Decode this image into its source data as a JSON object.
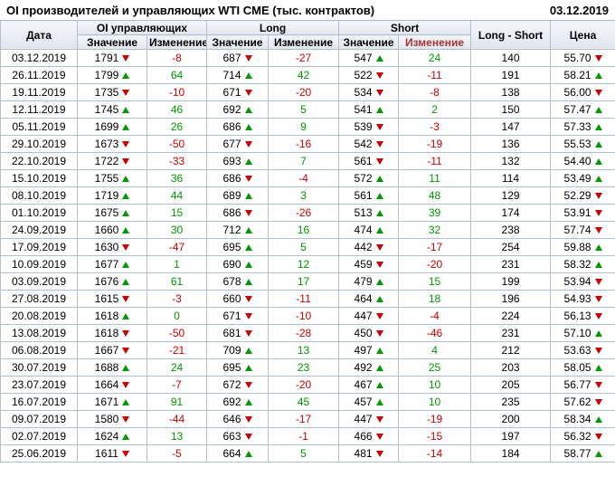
{
  "chart_data": {
    "type": "table",
    "title": "OI производителей и управляющих WTI CME (тыс. контрактов)",
    "date": "03.12.2019",
    "group_headers": {
      "date": "Дата",
      "oi": "OI управляющих",
      "long": "Long",
      "short": "Short",
      "long_short": "Long - Short",
      "price": "Цена"
    },
    "sub_headers": {
      "value": "Значение",
      "change": "Изменение"
    },
    "rows": [
      {
        "date": "03.12.2019",
        "oi": 1791,
        "oi_chg": -8,
        "oi_dir": "down",
        "long": 687,
        "long_chg": -27,
        "long_dir": "down",
        "short": 547,
        "short_chg": 24,
        "short_dir": "up",
        "long_short": 140,
        "price": "55.70",
        "price_dir": "down"
      },
      {
        "date": "26.11.2019",
        "oi": 1799,
        "oi_chg": 64,
        "oi_dir": "up",
        "long": 714,
        "long_chg": 42,
        "long_dir": "up",
        "short": 522,
        "short_chg": -11,
        "short_dir": "down",
        "long_short": 191,
        "price": "58.21",
        "price_dir": "up"
      },
      {
        "date": "19.11.2019",
        "oi": 1735,
        "oi_chg": -10,
        "oi_dir": "down",
        "long": 671,
        "long_chg": -20,
        "long_dir": "down",
        "short": 534,
        "short_chg": -8,
        "short_dir": "down",
        "long_short": 138,
        "price": "56.00",
        "price_dir": "down"
      },
      {
        "date": "12.11.2019",
        "oi": 1745,
        "oi_chg": 46,
        "oi_dir": "up",
        "long": 692,
        "long_chg": 5,
        "long_dir": "up",
        "short": 541,
        "short_chg": 2,
        "short_dir": "up",
        "long_short": 150,
        "price": "57.47",
        "price_dir": "up"
      },
      {
        "date": "05.11.2019",
        "oi": 1699,
        "oi_chg": 26,
        "oi_dir": "up",
        "long": 686,
        "long_chg": 9,
        "long_dir": "up",
        "short": 539,
        "short_chg": -3,
        "short_dir": "down",
        "long_short": 147,
        "price": "57.33",
        "price_dir": "up"
      },
      {
        "date": "29.10.2019",
        "oi": 1673,
        "oi_chg": -50,
        "oi_dir": "down",
        "long": 677,
        "long_chg": -16,
        "long_dir": "down",
        "short": 542,
        "short_chg": -19,
        "short_dir": "down",
        "long_short": 136,
        "price": "55.53",
        "price_dir": "up"
      },
      {
        "date": "22.10.2019",
        "oi": 1722,
        "oi_chg": -33,
        "oi_dir": "down",
        "long": 693,
        "long_chg": 7,
        "long_dir": "up",
        "short": 561,
        "short_chg": -11,
        "short_dir": "down",
        "long_short": 132,
        "price": "54.40",
        "price_dir": "up"
      },
      {
        "date": "15.10.2019",
        "oi": 1755,
        "oi_chg": 36,
        "oi_dir": "up",
        "long": 686,
        "long_chg": -4,
        "long_dir": "down",
        "short": 572,
        "short_chg": 11,
        "short_dir": "up",
        "long_short": 114,
        "price": "53.49",
        "price_dir": "up"
      },
      {
        "date": "08.10.2019",
        "oi": 1719,
        "oi_chg": 44,
        "oi_dir": "up",
        "long": 689,
        "long_chg": 3,
        "long_dir": "up",
        "short": 561,
        "short_chg": 48,
        "short_dir": "up",
        "long_short": 129,
        "price": "52.29",
        "price_dir": "down"
      },
      {
        "date": "01.10.2019",
        "oi": 1675,
        "oi_chg": 15,
        "oi_dir": "up",
        "long": 686,
        "long_chg": -26,
        "long_dir": "down",
        "short": 513,
        "short_chg": 39,
        "short_dir": "up",
        "long_short": 174,
        "price": "53.91",
        "price_dir": "down"
      },
      {
        "date": "24.09.2019",
        "oi": 1660,
        "oi_chg": 30,
        "oi_dir": "up",
        "long": 712,
        "long_chg": 16,
        "long_dir": "up",
        "short": 474,
        "short_chg": 32,
        "short_dir": "up",
        "long_short": 238,
        "price": "57.74",
        "price_dir": "down"
      },
      {
        "date": "17.09.2019",
        "oi": 1630,
        "oi_chg": -47,
        "oi_dir": "down",
        "long": 695,
        "long_chg": 5,
        "long_dir": "up",
        "short": 442,
        "short_chg": -17,
        "short_dir": "down",
        "long_short": 254,
        "price": "59.88",
        "price_dir": "up"
      },
      {
        "date": "10.09.2019",
        "oi": 1677,
        "oi_chg": 1,
        "oi_dir": "up",
        "long": 690,
        "long_chg": 12,
        "long_dir": "up",
        "short": 459,
        "short_chg": -20,
        "short_dir": "down",
        "long_short": 231,
        "price": "58.32",
        "price_dir": "up"
      },
      {
        "date": "03.09.2019",
        "oi": 1676,
        "oi_chg": 61,
        "oi_dir": "up",
        "long": 678,
        "long_chg": 17,
        "long_dir": "up",
        "short": 479,
        "short_chg": 15,
        "short_dir": "up",
        "long_short": 199,
        "price": "53.94",
        "price_dir": "down"
      },
      {
        "date": "27.08.2019",
        "oi": 1615,
        "oi_chg": -3,
        "oi_dir": "down",
        "long": 660,
        "long_chg": -11,
        "long_dir": "down",
        "short": 464,
        "short_chg": 18,
        "short_dir": "up",
        "long_short": 196,
        "price": "54.93",
        "price_dir": "down"
      },
      {
        "date": "20.08.2019",
        "oi": 1618,
        "oi_chg": 0,
        "oi_dir": "up",
        "long": 671,
        "long_chg": -10,
        "long_dir": "down",
        "short": 447,
        "short_chg": -4,
        "short_dir": "down",
        "long_short": 224,
        "price": "56.13",
        "price_dir": "down"
      },
      {
        "date": "13.08.2019",
        "oi": 1618,
        "oi_chg": -50,
        "oi_dir": "down",
        "long": 681,
        "long_chg": -28,
        "long_dir": "down",
        "short": 450,
        "short_chg": -46,
        "short_dir": "down",
        "long_short": 231,
        "price": "57.10",
        "price_dir": "up"
      },
      {
        "date": "06.08.2019",
        "oi": 1667,
        "oi_chg": -21,
        "oi_dir": "down",
        "long": 709,
        "long_chg": 13,
        "long_dir": "up",
        "short": 497,
        "short_chg": 4,
        "short_dir": "up",
        "long_short": 212,
        "price": "53.63",
        "price_dir": "down"
      },
      {
        "date": "30.07.2019",
        "oi": 1688,
        "oi_chg": 24,
        "oi_dir": "up",
        "long": 695,
        "long_chg": 23,
        "long_dir": "up",
        "short": 492,
        "short_chg": 25,
        "short_dir": "up",
        "long_short": 203,
        "price": "58.05",
        "price_dir": "up"
      },
      {
        "date": "23.07.2019",
        "oi": 1664,
        "oi_chg": -7,
        "oi_dir": "down",
        "long": 672,
        "long_chg": -20,
        "long_dir": "down",
        "short": 467,
        "short_chg": 10,
        "short_dir": "up",
        "long_short": 205,
        "price": "56.77",
        "price_dir": "down"
      },
      {
        "date": "16.07.2019",
        "oi": 1671,
        "oi_chg": 91,
        "oi_dir": "up",
        "long": 692,
        "long_chg": 45,
        "long_dir": "up",
        "short": 457,
        "short_chg": 10,
        "short_dir": "up",
        "long_short": 235,
        "price": "57.62",
        "price_dir": "down"
      },
      {
        "date": "09.07.2019",
        "oi": 1580,
        "oi_chg": -44,
        "oi_dir": "down",
        "long": 646,
        "long_chg": -17,
        "long_dir": "down",
        "short": 447,
        "short_chg": -19,
        "short_dir": "down",
        "long_short": 200,
        "price": "58.34",
        "price_dir": "up"
      },
      {
        "date": "02.07.2019",
        "oi": 1624,
        "oi_chg": 13,
        "oi_dir": "up",
        "long": 663,
        "long_chg": -1,
        "long_dir": "down",
        "short": 466,
        "short_chg": -15,
        "short_dir": "down",
        "long_short": 197,
        "price": "56.32",
        "price_dir": "down"
      },
      {
        "date": "25.06.2019",
        "oi": 1611,
        "oi_chg": -5,
        "oi_dir": "down",
        "long": 664,
        "long_chg": 5,
        "long_dir": "up",
        "short": 481,
        "short_chg": -14,
        "short_dir": "down",
        "long_short": 184,
        "price": "58.77",
        "price_dir": "up"
      }
    ]
  },
  "colors": {
    "positive": "#009900",
    "negative": "#cc0000",
    "border": "#b0bfd2",
    "short_change_header": "#aa3333"
  }
}
